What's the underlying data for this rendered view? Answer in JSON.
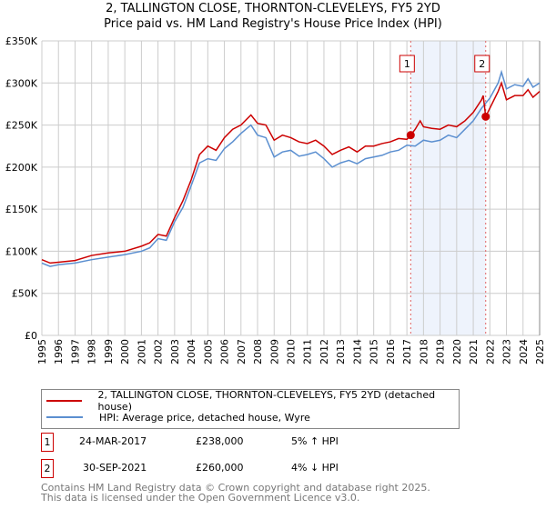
{
  "chart_data": {
    "type": "line",
    "title": "2, TALLINGTON CLOSE, THORNTON-CLEVELEYS, FY5 2YD",
    "subtitle": "Price paid vs. HM Land Registry's House Price Index (HPI)",
    "xlim": [
      1995,
      2025
    ],
    "ylim": [
      0,
      350000
    ],
    "x_ticks": [
      "1995",
      "1996",
      "1997",
      "1998",
      "1999",
      "2000",
      "2001",
      "2002",
      "2003",
      "2004",
      "2005",
      "2006",
      "2007",
      "2008",
      "2009",
      "2010",
      "2011",
      "2012",
      "2013",
      "2014",
      "2015",
      "2016",
      "2017",
      "2018",
      "2019",
      "2020",
      "2021",
      "2022",
      "2023",
      "2024",
      "2025"
    ],
    "y_ticks": [
      {
        "v": 0,
        "label": "£0"
      },
      {
        "v": 50000,
        "label": "£50K"
      },
      {
        "v": 100000,
        "label": "£100K"
      },
      {
        "v": 150000,
        "label": "£150K"
      },
      {
        "v": 200000,
        "label": "£200K"
      },
      {
        "v": 250000,
        "label": "£250K"
      },
      {
        "v": 300000,
        "label": "£300K"
      },
      {
        "v": 350000,
        "label": "£350K"
      }
    ],
    "grid": true,
    "series": [
      {
        "name": "2, TALLINGTON CLOSE, THORNTON-CLEVELEYS, FY5 2YD (detached house)",
        "color": "#cc0000",
        "x": [
          1995,
          1995.5,
          1996,
          1997,
          1998,
          1999,
          2000,
          2001,
          2001.5,
          2002,
          2002.5,
          2003,
          2003.5,
          2004,
          2004.5,
          2005,
          2005.5,
          2006,
          2006.5,
          2007,
          2007.6,
          2008,
          2008.5,
          2009,
          2009.5,
          2010,
          2010.5,
          2011,
          2011.5,
          2012,
          2012.5,
          2013,
          2013.5,
          2014,
          2014.5,
          2015,
          2015.5,
          2016,
          2016.5,
          2017,
          2017.23,
          2017.5,
          2017.8,
          2018,
          2018.5,
          2019,
          2019.5,
          2020,
          2020.5,
          2021,
          2021.5,
          2021.6,
          2021.75,
          2022,
          2022.5,
          2022.7,
          2023,
          2023.5,
          2024,
          2024.3,
          2024.6,
          2025
        ],
        "y": [
          90000,
          86000,
          87000,
          89000,
          95000,
          98000,
          100000,
          106000,
          110000,
          120000,
          118000,
          140000,
          160000,
          185000,
          215000,
          225000,
          220000,
          235000,
          245000,
          250000,
          262000,
          252000,
          250000,
          232000,
          238000,
          235000,
          230000,
          228000,
          232000,
          225000,
          215000,
          220000,
          224000,
          218000,
          225000,
          225000,
          228000,
          230000,
          234000,
          233000,
          238000,
          245000,
          255000,
          248000,
          246000,
          245000,
          250000,
          248000,
          255000,
          265000,
          280000,
          285000,
          260000,
          270000,
          290000,
          300000,
          280000,
          285000,
          285000,
          292000,
          283000,
          290000
        ]
      },
      {
        "name": "HPI: Average price, detached house, Wyre",
        "color": "#5b8fd0",
        "x": [
          1995,
          1995.5,
          1996,
          1997,
          1998,
          1999,
          2000,
          2001,
          2001.5,
          2002,
          2002.5,
          2003,
          2003.5,
          2004,
          2004.5,
          2005,
          2005.5,
          2006,
          2006.5,
          2007,
          2007.6,
          2008,
          2008.5,
          2009,
          2009.5,
          2010,
          2010.5,
          2011,
          2011.5,
          2012,
          2012.5,
          2013,
          2013.5,
          2014,
          2014.5,
          2015,
          2015.5,
          2016,
          2016.5,
          2017,
          2017.5,
          2018,
          2018.5,
          2019,
          2019.5,
          2020,
          2020.5,
          2021,
          2021.5,
          2022,
          2022.5,
          2022.7,
          2023,
          2023.5,
          2024,
          2024.3,
          2024.6,
          2025
        ],
        "y": [
          86000,
          82000,
          84000,
          86000,
          90000,
          93000,
          96000,
          100000,
          104000,
          115000,
          113000,
          135000,
          152000,
          178000,
          205000,
          210000,
          208000,
          222000,
          230000,
          240000,
          250000,
          238000,
          235000,
          212000,
          218000,
          220000,
          213000,
          215000,
          218000,
          210000,
          200000,
          205000,
          208000,
          204000,
          210000,
          212000,
          214000,
          218000,
          220000,
          226000,
          225000,
          232000,
          230000,
          232000,
          238000,
          235000,
          245000,
          255000,
          270000,
          282000,
          300000,
          313000,
          293000,
          298000,
          296000,
          305000,
          295000,
          300000
        ]
      }
    ],
    "sales": [
      {
        "id": "1",
        "x": 2017.23,
        "y": 238000,
        "date": "24-MAR-2017",
        "price": "£238,000",
        "hpi": "5% ↑ HPI"
      },
      {
        "id": "2",
        "x": 2021.75,
        "y": 260000,
        "date": "30-SEP-2021",
        "price": "£260,000",
        "hpi": "4% ↓ HPI"
      }
    ],
    "shaded_region": [
      2017.23,
      2021.75
    ],
    "legend_placement": "below"
  },
  "footer": [
    "Contains HM Land Registry data © Crown copyright and database right 2025.",
    "This data is licensed under the Open Government Licence v3.0."
  ]
}
